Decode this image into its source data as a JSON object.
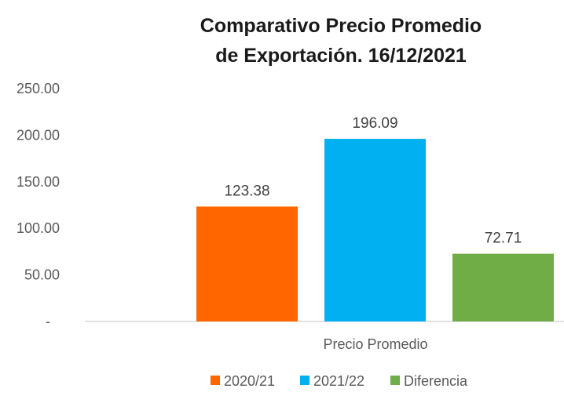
{
  "chart_data": {
    "type": "bar",
    "title_lines": [
      "Comparativo Precio Promedio",
      "de Exportación. 16/12/2021"
    ],
    "categories": [
      "Precio Promedio"
    ],
    "series": [
      {
        "name": "2020/21",
        "values": [
          123.38
        ],
        "label": "123.38",
        "color": "#ff6600"
      },
      {
        "name": "2021/22",
        "values": [
          196.09
        ],
        "label": "196.09",
        "color": "#00b0f0"
      },
      {
        "name": "Diferencia",
        "values": [
          72.71
        ],
        "label": "72.71",
        "color": "#70ad47"
      }
    ],
    "yticks": [
      "-",
      "50.00",
      "100.00",
      "150.00",
      "200.00",
      "250.00"
    ],
    "ylim": [
      0,
      250
    ],
    "xlabel": "",
    "ylabel": "",
    "grid": false,
    "legend": "bottom"
  }
}
